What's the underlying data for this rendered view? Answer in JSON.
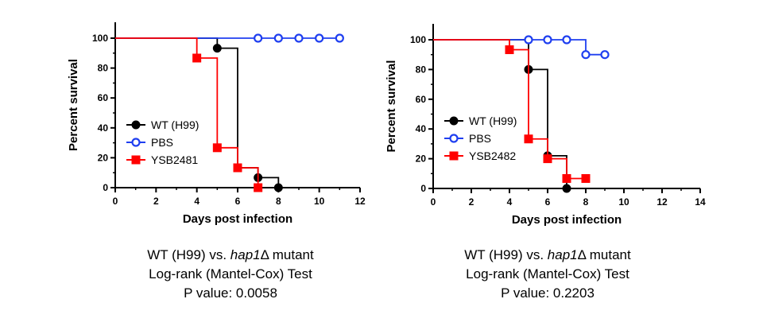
{
  "chart_data": [
    {
      "type": "line",
      "subtype": "kaplan-meier survival",
      "xlabel": "Days post infection",
      "ylabel": "Percent survival",
      "xlim": [
        0,
        12
      ],
      "ylim": [
        0,
        100
      ],
      "xticks": [
        0,
        2,
        4,
        6,
        8,
        10,
        12
      ],
      "yticks": [
        0,
        20,
        40,
        60,
        80,
        100
      ],
      "legend_position": "left-middle",
      "series": [
        {
          "name": "WT (H99)",
          "color": "#000000",
          "marker": "filled-circle",
          "steps": [
            [
              0,
              100
            ],
            [
              5,
              93.3
            ],
            [
              6,
              13.3
            ],
            [
              7,
              6.7
            ],
            [
              8,
              0
            ]
          ],
          "markers": [
            [
              5,
              93.3
            ],
            [
              6,
              13.3
            ],
            [
              7,
              6.7
            ],
            [
              8,
              0
            ]
          ]
        },
        {
          "name": "PBS",
          "color": "#1f3ff0",
          "marker": "open-circle",
          "steps": [
            [
              0,
              100
            ],
            [
              11,
              100
            ]
          ],
          "markers": [
            [
              7,
              100
            ],
            [
              8,
              100
            ],
            [
              9,
              100
            ],
            [
              10,
              100
            ],
            [
              11,
              100
            ]
          ]
        },
        {
          "name": "YSB2481",
          "color": "#ff0000",
          "marker": "filled-square",
          "steps": [
            [
              0,
              100
            ],
            [
              4,
              86.7
            ],
            [
              5,
              26.7
            ],
            [
              6,
              13.3
            ],
            [
              7,
              0
            ]
          ],
          "markers": [
            [
              4,
              86.7
            ],
            [
              5,
              26.7
            ],
            [
              6,
              13.3
            ],
            [
              7,
              0
            ]
          ]
        }
      ]
    },
    {
      "type": "line",
      "subtype": "kaplan-meier survival",
      "xlabel": "Days post infection",
      "ylabel": "Percent survival",
      "xlim": [
        0,
        14
      ],
      "ylim": [
        0,
        100
      ],
      "xticks": [
        0,
        2,
        4,
        6,
        8,
        10,
        12,
        14
      ],
      "yticks": [
        0,
        20,
        40,
        60,
        80,
        100
      ],
      "legend_position": "left-middle",
      "series": [
        {
          "name": "WT (H99)",
          "color": "#000000",
          "marker": "filled-circle",
          "steps": [
            [
              0,
              100
            ],
            [
              5,
              80
            ],
            [
              6,
              22
            ],
            [
              7,
              0
            ]
          ],
          "markers": [
            [
              5,
              80
            ],
            [
              6,
              22
            ],
            [
              7,
              0
            ]
          ]
        },
        {
          "name": "PBS",
          "color": "#1f3ff0",
          "marker": "open-circle",
          "steps": [
            [
              0,
              100
            ],
            [
              8,
              90
            ],
            [
              9,
              90
            ]
          ],
          "markers": [
            [
              5,
              100
            ],
            [
              6,
              100
            ],
            [
              7,
              100
            ],
            [
              8,
              90
            ],
            [
              9,
              90
            ]
          ]
        },
        {
          "name": "YSB2482",
          "color": "#ff0000",
          "marker": "filled-square",
          "steps": [
            [
              0,
              100
            ],
            [
              4,
              93.3
            ],
            [
              5,
              33.3
            ],
            [
              6,
              20
            ],
            [
              7,
              6.7
            ],
            [
              8,
              6.7
            ]
          ],
          "markers": [
            [
              4,
              93.3
            ],
            [
              5,
              33.3
            ],
            [
              6,
              20
            ],
            [
              7,
              6.7
            ],
            [
              8,
              6.7
            ]
          ]
        }
      ]
    }
  ],
  "captions": [
    {
      "line1_prefix": "WT (H99) vs. ",
      "line1_gene": "hap1",
      "line1_suffix": "Δ mutant",
      "line2": "Log-rank (Mantel-Cox) Test",
      "line3": "P value: 0.0058"
    },
    {
      "line1_prefix": "WT (H99) vs. ",
      "line1_gene": "hap1",
      "line1_suffix": "Δ mutant",
      "line2": "Log-rank (Mantel-Cox) Test",
      "line3": "P value: 0.2203"
    }
  ]
}
